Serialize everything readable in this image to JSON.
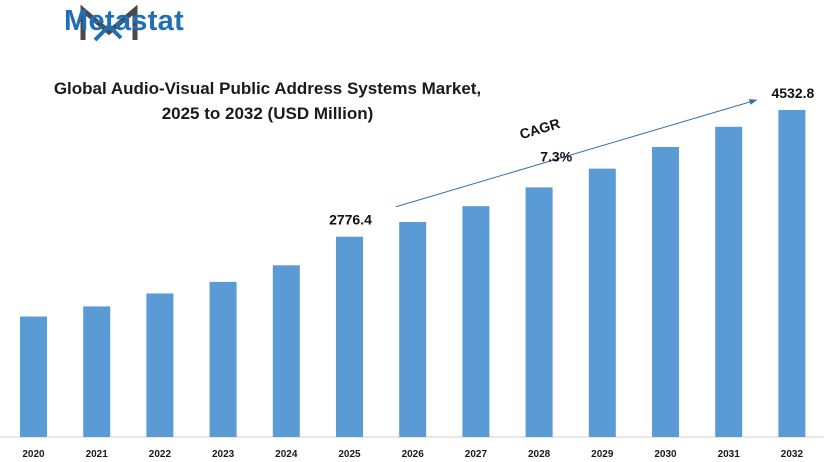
{
  "brand": {
    "name": "Metastat",
    "logo_color": "#1f6fb8",
    "logo_icon": "metastat-m-logo-icon"
  },
  "chart_data": {
    "type": "bar",
    "title_line1": "Global Audio-Visual  Public Address Systems Market,",
    "title_line2": "2025 to 2032 (USD Million)",
    "categories": [
      "2020",
      "2021",
      "2022",
      "2023",
      "2024",
      "2025",
      "2026",
      "2027",
      "2028",
      "2029",
      "2030",
      "2031",
      "2032"
    ],
    "values": [
      1670,
      1810,
      1990,
      2150,
      2380,
      2776.4,
      2980,
      3200,
      3460,
      3720,
      4020,
      4300,
      4532.8
    ],
    "data_labels": {
      "2025": "2776.4",
      "2032": "4532.8"
    },
    "annotation": {
      "label": "CAGR",
      "value": "7.3%"
    },
    "bar_color": "#5b9bd5",
    "ylim": [
      0,
      4532.8
    ],
    "grid": false,
    "legend": "none"
  }
}
